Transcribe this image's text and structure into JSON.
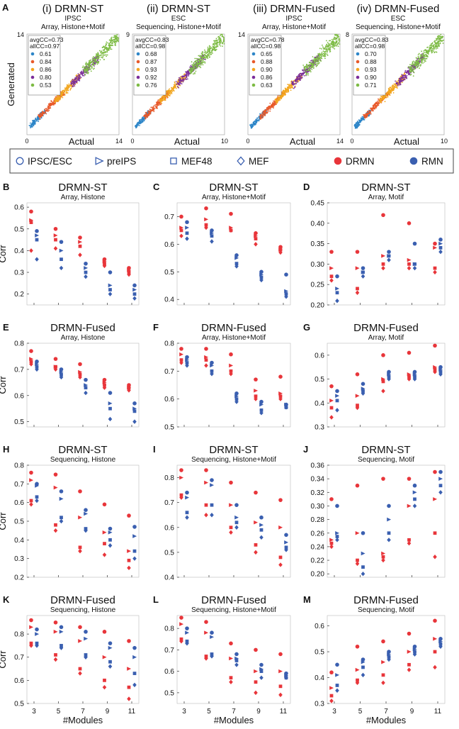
{
  "colors": {
    "drmn": "#e8353a",
    "rmn": "#3a5fb0",
    "module_colors": [
      "#2e86c8",
      "#e8592a",
      "#f2a61e",
      "#7b2d9a",
      "#7dbb44"
    ],
    "axis": "#333333",
    "grid": "#d9d9d9"
  },
  "legend": {
    "items": [
      {
        "label": "IPSC/ESC",
        "shape": "circle-outline"
      },
      {
        "label": "preIPS",
        "shape": "triangle-outline"
      },
      {
        "label": "MEF48",
        "shape": "square-outline"
      },
      {
        "label": "MEF",
        "shape": "diamond-outline"
      },
      {
        "label": "DRMN",
        "shape": "filled-circle-red"
      },
      {
        "label": "RMN",
        "shape": "filled-circle-blue"
      }
    ]
  },
  "chart_data": [
    {
      "type": "scatter",
      "panel_letter": "A",
      "roman": "(i)",
      "title": "DRMN-ST",
      "subtitle1": "IPSC",
      "subtitle2": "Array, Histone+Motif",
      "xlabel": "Actual",
      "ylabel": "Generated",
      "x_ticks": [
        "0",
        "14"
      ],
      "y_top_tick": "14",
      "xlim": [
        0,
        14
      ],
      "ylim": [
        0,
        14
      ],
      "avgCC": "avgCC=0.73",
      "allCC": "allCC=0.97",
      "module_cc": [
        "0.61",
        "0.84",
        "0.86",
        "0.80",
        "0.53"
      ]
    },
    {
      "type": "scatter",
      "roman": "(ii)",
      "title": "DRMN-ST",
      "subtitle1": "ESC",
      "subtitle2": "Sequencing, Histone+Motif",
      "xlabel": "Actual",
      "x_ticks": [
        "0",
        "10"
      ],
      "y_top_tick": "9",
      "xlim": [
        0,
        10
      ],
      "ylim": [
        0,
        9
      ],
      "avgCC": "avgCC=0.83",
      "allCC": "allCC=0.98",
      "module_cc": [
        "0.68",
        "0.87",
        "0.93",
        "0.92",
        "0.76"
      ]
    },
    {
      "type": "scatter",
      "roman": "(iii)",
      "title": "DRMN-Fused",
      "subtitle1": "IPSC",
      "subtitle2": "Array, Histone+Motif",
      "xlabel": "Actual",
      "x_ticks": [
        "0",
        "14"
      ],
      "y_top_tick": "14",
      "xlim": [
        0,
        14
      ],
      "ylim": [
        0,
        14
      ],
      "avgCC": "avgCC=0.78",
      "allCC": "allCC=0.98",
      "module_cc": [
        "0.65",
        "0.88",
        "0.90",
        "0.86",
        "0.63"
      ]
    },
    {
      "type": "scatter",
      "roman": "(iv)",
      "title": "DRMN-Fused",
      "subtitle1": "ESC",
      "subtitle2": "Sequencing, Histone+Motif",
      "xlabel": "Actual",
      "x_ticks": [
        "0",
        "10"
      ],
      "y_top_tick": "8",
      "xlim": [
        0,
        10
      ],
      "ylim": [
        0,
        8
      ],
      "avgCC": "avgCC=0.83",
      "allCC": "allCC=0.98",
      "module_cc": [
        "0.70",
        "0.88",
        "0.93",
        "0.90",
        "0.71"
      ]
    },
    {
      "type": "scatter",
      "panel_letter": "B",
      "title": "DRMN-ST",
      "subtitle": "Array, Histone",
      "ylabel": "Corr",
      "ylim": [
        0.15,
        0.62
      ],
      "yticks": [
        0.2,
        0.3,
        0.4,
        0.5,
        0.6
      ],
      "ytick_labels": [
        "0.2",
        "0.3",
        "0.4",
        "0.5",
        "0.6"
      ],
      "x": [
        3,
        5,
        7,
        9,
        11
      ],
      "drmn": [
        [
          0.58,
          0.54,
          0.53,
          0.4
        ],
        [
          0.5,
          0.47,
          0.45,
          0.41
        ],
        [
          0.46,
          0.44,
          0.42,
          0.38
        ],
        [
          0.36,
          0.35,
          0.34,
          0.33
        ],
        [
          0.32,
          0.31,
          0.3,
          0.29
        ]
      ],
      "rmn": [
        [
          0.49,
          0.47,
          0.45,
          0.36
        ],
        [
          0.44,
          0.4,
          0.36,
          0.32
        ],
        [
          0.34,
          0.32,
          0.3,
          0.28
        ],
        [
          0.3,
          0.24,
          0.22,
          0.2
        ],
        [
          0.24,
          0.22,
          0.2,
          0.18
        ]
      ]
    },
    {
      "type": "scatter",
      "panel_letter": "C",
      "title": "DRMN-ST",
      "subtitle": "Array, Histone+Motif",
      "ylim": [
        0.38,
        0.75
      ],
      "yticks": [
        0.4,
        0.5,
        0.6,
        0.7
      ],
      "ytick_labels": [
        "0.4",
        "0.5",
        "0.6",
        "0.7"
      ],
      "x": [
        3,
        5,
        7,
        9,
        11
      ],
      "drmn": [
        [
          0.7,
          0.66,
          0.65,
          0.63
        ],
        [
          0.73,
          0.69,
          0.67,
          0.66
        ],
        [
          0.71,
          0.66,
          0.65,
          0.65
        ],
        [
          0.64,
          0.63,
          0.62,
          0.6
        ],
        [
          0.59,
          0.58,
          0.58,
          0.57
        ]
      ],
      "rmn": [
        [
          0.68,
          0.66,
          0.64,
          0.62
        ],
        [
          0.65,
          0.64,
          0.63,
          0.61
        ],
        [
          0.56,
          0.55,
          0.53,
          0.52
        ],
        [
          0.5,
          0.49,
          0.48,
          0.47
        ],
        [
          0.49,
          0.43,
          0.42,
          0.41
        ]
      ]
    },
    {
      "type": "scatter",
      "panel_letter": "D",
      "title": "DRMN-ST",
      "subtitle": "Array, Motif",
      "ylim": [
        0.2,
        0.45
      ],
      "yticks": [
        0.2,
        0.25,
        0.3,
        0.35,
        0.4,
        0.45
      ],
      "ytick_labels": [
        "0.20",
        "0.25",
        "0.30",
        "0.35",
        "0.40",
        "0.45"
      ],
      "x": [
        3,
        5,
        7,
        9,
        11
      ],
      "drmn": [
        [
          0.33,
          0.29,
          0.27,
          0.26
        ],
        [
          0.33,
          0.29,
          0.24,
          0.23
        ],
        [
          0.42,
          0.32,
          0.3,
          0.29
        ],
        [
          0.4,
          0.31,
          0.3,
          0.29
        ],
        [
          0.35,
          0.34,
          0.29,
          0.28
        ]
      ],
      "rmn": [
        [
          0.27,
          0.24,
          0.23,
          0.21
        ],
        [
          0.29,
          0.28,
          0.28,
          0.27
        ],
        [
          0.33,
          0.32,
          0.32,
          0.31
        ],
        [
          0.35,
          0.3,
          0.3,
          0.29
        ],
        [
          0.36,
          0.35,
          0.34,
          0.33
        ]
      ]
    },
    {
      "type": "scatter",
      "panel_letter": "E",
      "title": "DRMN-Fused",
      "subtitle": "Array, Histone",
      "ylabel": "Corr",
      "ylim": [
        0.48,
        0.8
      ],
      "yticks": [
        0.5,
        0.6,
        0.7,
        0.8
      ],
      "ytick_labels": [
        "0.5",
        "0.6",
        "0.7",
        "0.8"
      ],
      "x": [
        3,
        5,
        7,
        9,
        11
      ],
      "drmn": [
        [
          0.77,
          0.74,
          0.73,
          0.72
        ],
        [
          0.74,
          0.71,
          0.71,
          0.7
        ],
        [
          0.72,
          0.69,
          0.68,
          0.67
        ],
        [
          0.66,
          0.65,
          0.64,
          0.63
        ],
        [
          0.64,
          0.63,
          0.63,
          0.62
        ]
      ],
      "rmn": [
        [
          0.73,
          0.72,
          0.71,
          0.7
        ],
        [
          0.7,
          0.69,
          0.68,
          0.67
        ],
        [
          0.66,
          0.64,
          0.63,
          0.61
        ],
        [
          0.61,
          0.57,
          0.55,
          0.51
        ],
        [
          0.57,
          0.55,
          0.54,
          0.5
        ]
      ]
    },
    {
      "type": "scatter",
      "panel_letter": "F",
      "title": "DRMN-Fused",
      "subtitle": "Array, Histone+Motif",
      "ylim": [
        0.5,
        0.8
      ],
      "yticks": [
        0.5,
        0.6,
        0.7,
        0.8
      ],
      "ytick_labels": [
        "0.5",
        "0.6",
        "0.7",
        "0.8"
      ],
      "x": [
        3,
        5,
        7,
        9,
        11
      ],
      "drmn": [
        [
          0.78,
          0.76,
          0.74,
          0.73
        ],
        [
          0.78,
          0.75,
          0.74,
          0.72
        ],
        [
          0.76,
          0.72,
          0.7,
          0.69
        ],
        [
          0.67,
          0.63,
          0.61,
          0.6
        ],
        [
          0.68,
          0.62,
          0.61,
          0.6
        ]
      ],
      "rmn": [
        [
          0.75,
          0.74,
          0.73,
          0.72
        ],
        [
          0.73,
          0.72,
          0.7,
          0.69
        ],
        [
          0.62,
          0.61,
          0.6,
          0.59
        ],
        [
          0.59,
          0.58,
          0.56,
          0.55
        ],
        [
          0.58,
          0.58,
          0.57,
          0.57
        ]
      ]
    },
    {
      "type": "scatter",
      "panel_letter": "G",
      "title": "DRMN-Fused",
      "subtitle": "Array, Motif",
      "ylim": [
        0.3,
        0.65
      ],
      "yticks": [
        0.3,
        0.4,
        0.5,
        0.6
      ],
      "ytick_labels": [
        "0.3",
        "0.4",
        "0.5",
        "0.6"
      ],
      "x": [
        3,
        5,
        7,
        9,
        11
      ],
      "drmn": [
        [
          0.47,
          0.41,
          0.38,
          0.34
        ],
        [
          0.52,
          0.43,
          0.39,
          0.38
        ],
        [
          0.6,
          0.5,
          0.49,
          0.45
        ],
        [
          0.61,
          0.52,
          0.51,
          0.5
        ],
        [
          0.64,
          0.55,
          0.54,
          0.53
        ]
      ],
      "rmn": [
        [
          0.45,
          0.43,
          0.41,
          0.37
        ],
        [
          0.48,
          0.46,
          0.45,
          0.44
        ],
        [
          0.53,
          0.52,
          0.51,
          0.5
        ],
        [
          0.53,
          0.52,
          0.51,
          0.5
        ],
        [
          0.55,
          0.54,
          0.53,
          0.52
        ]
      ]
    },
    {
      "type": "scatter",
      "panel_letter": "H",
      "title": "DRMN-ST",
      "subtitle": "Sequencing, Histone",
      "ylabel": "Corr",
      "ylim": [
        0.2,
        0.8
      ],
      "yticks": [
        0.2,
        0.3,
        0.4,
        0.5,
        0.6,
        0.7,
        0.8
      ],
      "ytick_labels": [
        "0.2",
        "0.3",
        "0.4",
        "0.5",
        "0.6",
        "0.7",
        "0.8"
      ],
      "x": [
        3,
        5,
        7,
        9,
        11
      ],
      "drmn": [
        [
          0.76,
          0.72,
          0.61,
          0.59
        ],
        [
          0.75,
          0.68,
          0.48,
          0.45
        ],
        [
          0.66,
          0.52,
          0.36,
          0.34
        ],
        [
          0.59,
          0.44,
          0.38,
          0.32
        ],
        [
          0.53,
          0.34,
          0.29,
          0.25
        ]
      ],
      "rmn": [
        [
          0.7,
          0.69,
          0.63,
          0.61
        ],
        [
          0.66,
          0.62,
          0.52,
          0.5
        ],
        [
          0.56,
          0.54,
          0.46,
          0.45
        ],
        [
          0.46,
          0.44,
          0.4,
          0.37
        ],
        [
          0.47,
          0.42,
          0.34,
          0.3
        ]
      ]
    },
    {
      "type": "scatter",
      "panel_letter": "I",
      "title": "DRMN-ST",
      "subtitle": "Sequencing, Histone+Motif",
      "ylim": [
        0.4,
        0.85
      ],
      "yticks": [
        0.4,
        0.5,
        0.6,
        0.7,
        0.8
      ],
      "ytick_labels": [
        "0.4",
        "0.5",
        "0.6",
        "0.7",
        "0.8"
      ],
      "x": [
        3,
        5,
        7,
        9,
        11
      ],
      "drmn": [
        [
          0.83,
          0.8,
          0.73,
          0.72
        ],
        [
          0.83,
          0.78,
          0.69,
          0.65
        ],
        [
          0.78,
          0.69,
          0.6,
          0.58
        ],
        [
          0.74,
          0.62,
          0.53,
          0.5
        ],
        [
          0.71,
          0.6,
          0.48,
          0.45
        ]
      ],
      "rmn": [
        [
          0.74,
          0.72,
          0.66,
          0.64
        ],
        [
          0.79,
          0.77,
          0.69,
          0.65
        ],
        [
          0.69,
          0.64,
          0.62,
          0.6
        ],
        [
          0.64,
          0.61,
          0.59,
          0.56
        ],
        [
          0.57,
          0.54,
          0.52,
          0.51
        ]
      ]
    },
    {
      "type": "scatter",
      "panel_letter": "J",
      "title": "DRMN-ST",
      "subtitle": "Sequencing, Motif",
      "ylim": [
        0.195,
        0.36
      ],
      "yticks": [
        0.2,
        0.22,
        0.24,
        0.26,
        0.28,
        0.3,
        0.32,
        0.34,
        0.36
      ],
      "ytick_labels": [
        "0.20",
        "0.22",
        "0.24",
        "0.26",
        "0.28",
        "0.30",
        "0.32",
        "0.34",
        "0.36"
      ],
      "x": [
        3,
        5,
        7,
        9,
        11
      ],
      "drmn": [
        [
          0.31,
          0.25,
          0.245,
          0.24
        ],
        [
          0.33,
          0.26,
          0.22,
          0.215
        ],
        [
          0.34,
          0.23,
          0.225,
          0.22
        ],
        [
          0.34,
          0.3,
          0.25,
          0.245
        ],
        [
          0.35,
          0.31,
          0.26,
          0.225
        ]
      ],
      "rmn": [
        [
          0.3,
          0.26,
          0.255,
          0.25
        ],
        [
          0.26,
          0.23,
          0.21,
          0.2
        ],
        [
          0.3,
          0.28,
          0.26,
          0.25
        ],
        [
          0.33,
          0.32,
          0.31,
          0.3
        ],
        [
          0.35,
          0.34,
          0.33,
          0.32
        ]
      ]
    },
    {
      "type": "scatter",
      "panel_letter": "K",
      "title": "DRMN-Fused",
      "subtitle": "Sequencing, Histone",
      "ylabel": "Corr",
      "ylim": [
        0.5,
        0.88
      ],
      "yticks": [
        0.5,
        0.6,
        0.7,
        0.8
      ],
      "ytick_labels": [
        "0.5",
        "0.6",
        "0.7",
        "0.8"
      ],
      "x": [
        3,
        5,
        7,
        9,
        11
      ],
      "drmn": [
        [
          0.86,
          0.83,
          0.76,
          0.75
        ],
        [
          0.85,
          0.81,
          0.71,
          0.69
        ],
        [
          0.83,
          0.77,
          0.65,
          0.63
        ],
        [
          0.81,
          0.7,
          0.6,
          0.57
        ],
        [
          0.77,
          0.65,
          0.57,
          0.52
        ]
      ],
      "rmn": [
        [
          0.82,
          0.8,
          0.76,
          0.75
        ],
        [
          0.83,
          0.81,
          0.75,
          0.74
        ],
        [
          0.81,
          0.78,
          0.71,
          0.7
        ],
        [
          0.76,
          0.74,
          0.68,
          0.66
        ],
        [
          0.74,
          0.7,
          0.63,
          0.58
        ]
      ]
    },
    {
      "type": "scatter",
      "panel_letter": "L",
      "title": "DRMN-Fused",
      "subtitle": "Sequencing, Histone+Motif",
      "ylim": [
        0.45,
        0.86
      ],
      "yticks": [
        0.5,
        0.6,
        0.7,
        0.8
      ],
      "ytick_labels": [
        "0.5",
        "0.6",
        "0.7",
        "0.8"
      ],
      "x": [
        3,
        5,
        7,
        9,
        11
      ],
      "drmn": [
        [
          0.85,
          0.82,
          0.75,
          0.74
        ],
        [
          0.83,
          0.78,
          0.67,
          0.66
        ],
        [
          0.73,
          0.66,
          0.57,
          0.55
        ],
        [
          0.7,
          0.6,
          0.55,
          0.5
        ],
        [
          0.68,
          0.6,
          0.53,
          0.49
        ]
      ],
      "rmn": [
        [
          0.8,
          0.78,
          0.74,
          0.73
        ],
        [
          0.78,
          0.76,
          0.68,
          0.67
        ],
        [
          0.68,
          0.66,
          0.65,
          0.63
        ],
        [
          0.63,
          0.61,
          0.6,
          0.57
        ],
        [
          0.59,
          0.58,
          0.57,
          0.57
        ]
      ]
    },
    {
      "type": "scatter",
      "panel_letter": "M",
      "title": "DRMN-Fused",
      "subtitle": "Sequencing, Motif",
      "ylim": [
        0.3,
        0.64
      ],
      "yticks": [
        0.3,
        0.4,
        0.5,
        0.6
      ],
      "ytick_labels": [
        "0.3",
        "0.4",
        "0.5",
        "0.6"
      ],
      "x": [
        3,
        5,
        7,
        9,
        11
      ],
      "drmn": [
        [
          0.42,
          0.36,
          0.33,
          0.31
        ],
        [
          0.52,
          0.43,
          0.39,
          0.38
        ],
        [
          0.54,
          0.46,
          0.41,
          0.38
        ],
        [
          0.57,
          0.5,
          0.45,
          0.43
        ],
        [
          0.62,
          0.55,
          0.5,
          0.44
        ]
      ],
      "rmn": [
        [
          0.45,
          0.41,
          0.37,
          0.35
        ],
        [
          0.47,
          0.46,
          0.44,
          0.41
        ],
        [
          0.5,
          0.49,
          0.48,
          0.47
        ],
        [
          0.52,
          0.51,
          0.5,
          0.49
        ],
        [
          0.55,
          0.54,
          0.53,
          0.52
        ]
      ]
    }
  ],
  "x_axis": {
    "label": "#Modules",
    "tick_labels": [
      "3",
      "5",
      "7",
      "9",
      "11"
    ]
  }
}
